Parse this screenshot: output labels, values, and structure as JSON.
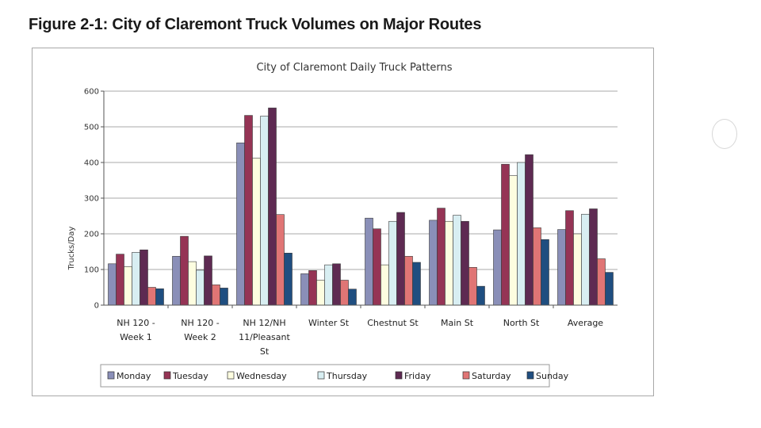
{
  "figure_title": "Figure 2-1:  City of Claremont Truck Volumes on Major Routes",
  "chart_data": {
    "type": "bar",
    "title": "City of Claremont Daily Truck Patterns",
    "xlabel": "",
    "ylabel": "Trucks/Day",
    "ylim": [
      0,
      600
    ],
    "yticks": [
      0,
      100,
      200,
      300,
      400,
      500,
      600
    ],
    "grid": true,
    "legend_position": "bottom",
    "categories": [
      [
        "NH 120 -",
        "Week 1"
      ],
      [
        "NH 120 -",
        "Week 2"
      ],
      [
        "NH 12/NH",
        "11/Pleasant",
        "St"
      ],
      [
        "Winter St"
      ],
      [
        "Chestnut St"
      ],
      [
        "Main St"
      ],
      [
        "North St"
      ],
      [
        "Average"
      ]
    ],
    "series": [
      {
        "name": "Monday",
        "color": "#8a8fb8",
        "values": [
          116,
          137,
          455,
          88,
          244,
          238,
          211,
          212
        ]
      },
      {
        "name": "Tuesday",
        "color": "#953455",
        "values": [
          143,
          193,
          532,
          97,
          214,
          272,
          395,
          265
        ]
      },
      {
        "name": "Wednesday",
        "color": "#fdfde0",
        "values": [
          108,
          122,
          412,
          70,
          113,
          235,
          363,
          200
        ]
      },
      {
        "name": "Thursday",
        "color": "#d8eef2",
        "values": [
          148,
          98,
          530,
          113,
          235,
          252,
          400,
          255
        ]
      },
      {
        "name": "Friday",
        "color": "#5e2a52",
        "values": [
          155,
          138,
          553,
          116,
          260,
          235,
          422,
          270
        ]
      },
      {
        "name": "Saturday",
        "color": "#e07575",
        "values": [
          50,
          57,
          254,
          70,
          137,
          106,
          217,
          130
        ]
      },
      {
        "name": "Sunday",
        "color": "#1f4e80",
        "values": [
          46,
          48,
          146,
          45,
          120,
          53,
          184,
          92
        ]
      }
    ]
  }
}
